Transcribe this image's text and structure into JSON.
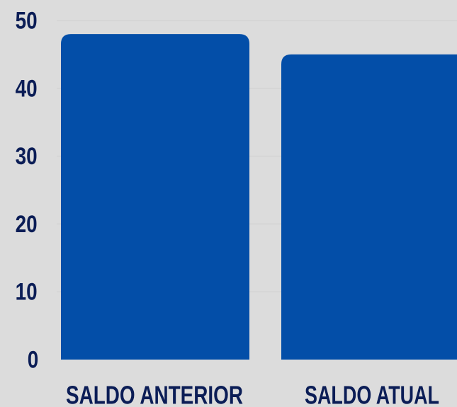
{
  "chart_data": {
    "type": "bar",
    "title": "",
    "xlabel": "",
    "ylabel": "",
    "categories": [
      "SALDO ANTERIOR",
      "SALDO ATUAL"
    ],
    "values": [
      48,
      45
    ],
    "ylim": [
      0,
      50
    ],
    "yticks": [
      0,
      10,
      20,
      30,
      40,
      50
    ],
    "grid": true,
    "bar_color": "#034ea8",
    "background_color": "#dcdcdc",
    "text_color": "#0b1d56"
  }
}
